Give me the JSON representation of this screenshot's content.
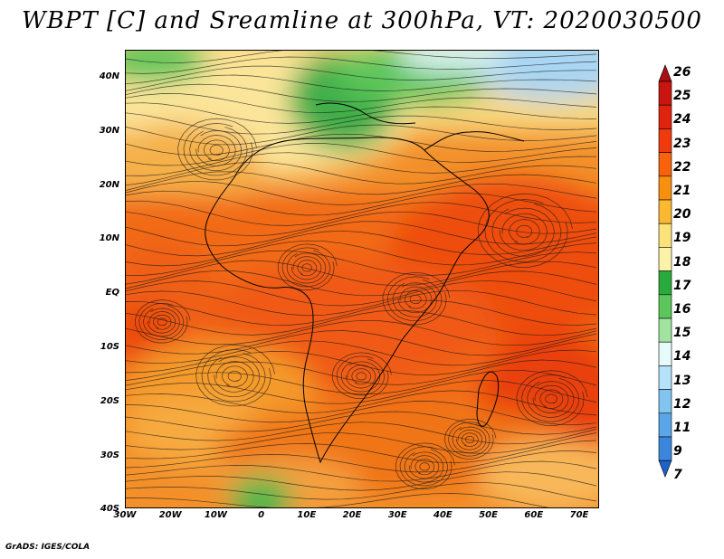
{
  "title": "WBPT [C] and Sreamline at 300hPa, VT: 2020030500",
  "footer": "GrADS: IGES/COLA",
  "y_axis_labels": [
    "40N",
    "30N",
    "20N",
    "10N",
    "EQ",
    "10S",
    "20S",
    "30S",
    "40S"
  ],
  "x_axis_labels": [
    "30W",
    "20W",
    "10W",
    "0",
    "10E",
    "20E",
    "30E",
    "40E",
    "50E",
    "60E",
    "70E"
  ],
  "colorbar": {
    "levels": [
      "26",
      "25",
      "24",
      "23",
      "22",
      "21",
      "20",
      "19",
      "18",
      "17",
      "16",
      "15",
      "14",
      "13",
      "12",
      "11",
      "9",
      "7"
    ],
    "colors": [
      "#a50f15",
      "#c8150f",
      "#e0230e",
      "#f03a0e",
      "#f7620b",
      "#f7900e",
      "#fcb830",
      "#fce27a",
      "#fcf2a8",
      "#2aaa3c",
      "#5cc65a",
      "#a2e3a0",
      "#e8fbfb",
      "#b6e2fb",
      "#82c4f0",
      "#5aa6e8",
      "#3a86dc",
      "#1d62c8"
    ]
  },
  "colors": {
    "warm_core": "#f04a10",
    "warm": "#f47a14",
    "mid": "#f5a13a",
    "pale": "#f5df8e",
    "green": "#49b44f",
    "light_green": "#8fdc8a",
    "blue": "#a9d6f3"
  }
}
